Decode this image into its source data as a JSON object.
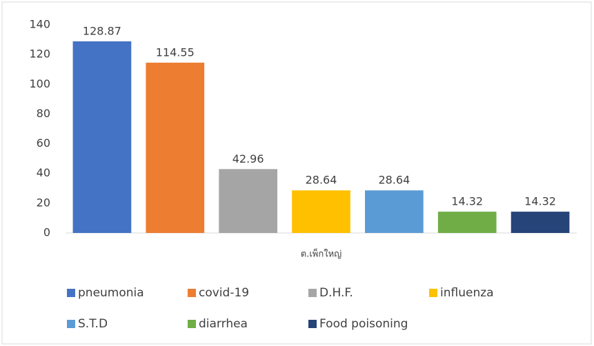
{
  "chart_data": {
    "type": "bar",
    "categories": [
      "ต.เพ็กใหญ่"
    ],
    "series": [
      {
        "name": "pneumonia",
        "color": "#4472c4",
        "values": [
          128.87
        ]
      },
      {
        "name": "covid-19",
        "color": "#ed7d31",
        "values": [
          114.55
        ]
      },
      {
        "name": "D.H.F.",
        "color": "#a5a5a5",
        "values": [
          42.96
        ]
      },
      {
        "name": "influenza",
        "color": "#ffc000",
        "values": [
          28.64
        ]
      },
      {
        "name": "S.T.D",
        "color": "#5b9bd5",
        "values": [
          28.64
        ]
      },
      {
        "name": "diarrhea",
        "color": "#70ad47",
        "values": [
          14.32
        ]
      },
      {
        "name": "Food poisoning",
        "color": "#264478",
        "values": [
          14.32
        ]
      }
    ],
    "ylim": [
      0,
      140
    ],
    "yticks": [
      0,
      20,
      40,
      60,
      80,
      100,
      120,
      140
    ],
    "grid": false,
    "legend": "bottom"
  }
}
